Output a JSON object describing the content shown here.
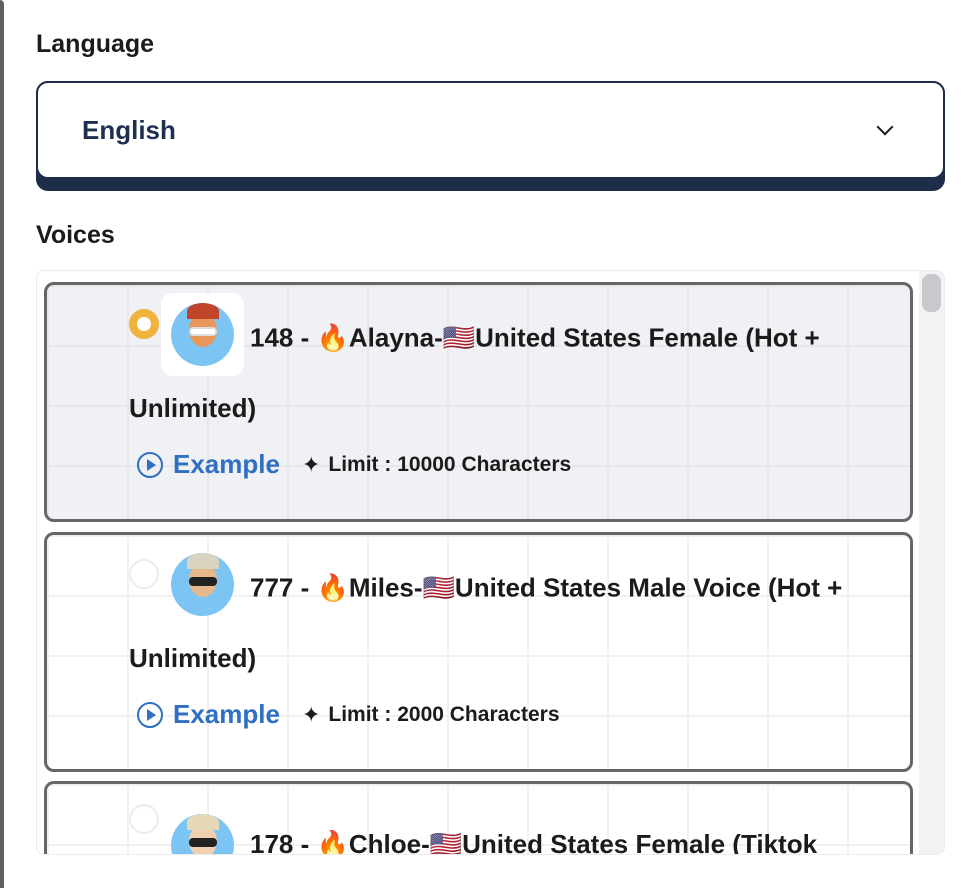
{
  "language": {
    "label": "Language",
    "selected": "English"
  },
  "voices": {
    "label": "Voices",
    "items": [
      {
        "title": "148 - 🔥Alayna-🇺🇸United States Female (Hot + Unlimited)",
        "example": "Example",
        "limit": "Limit : 10000 Characters",
        "selected": true
      },
      {
        "title": "777 - 🔥Miles-🇺🇸United States Male Voice (Hot + Unlimited)",
        "example": "Example",
        "limit": "Limit : 2000 Characters",
        "selected": false
      },
      {
        "title": "178 - 🔥Chloe-🇺🇸United States Female (Tiktok",
        "example": "",
        "limit": "",
        "selected": false
      }
    ]
  },
  "colors": {
    "accent": "#2f6fc1",
    "selected_radio": "#f0b43c",
    "navy": "#1e2d4a"
  }
}
